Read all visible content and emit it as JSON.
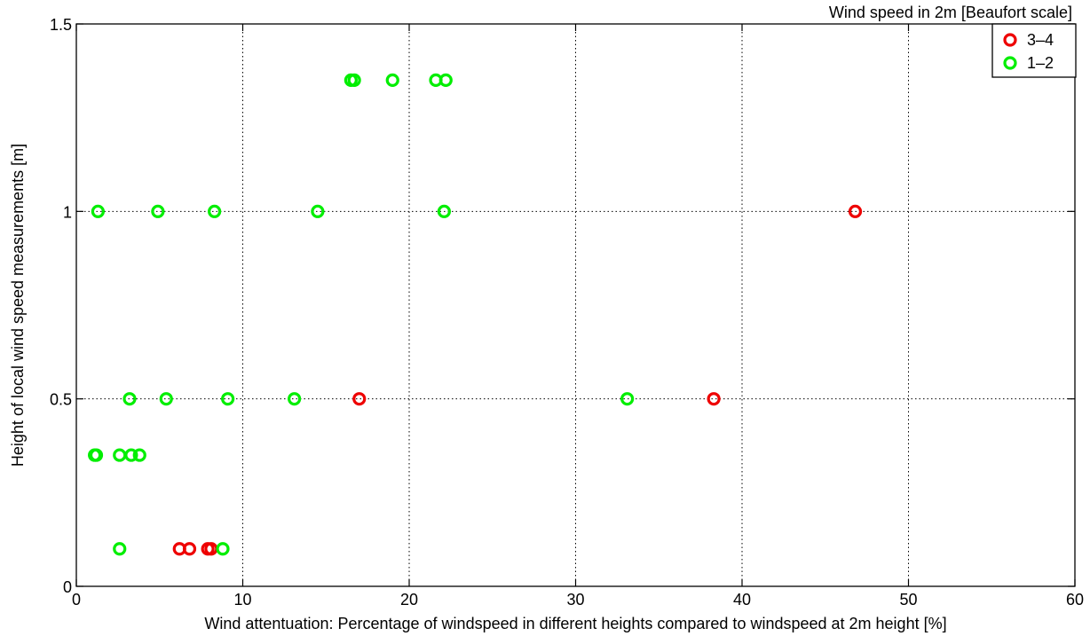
{
  "chart_data": {
    "type": "scatter",
    "title": "",
    "xlabel": "Wind attentuation: Percentage of windspeed in different heights compared to windspeed at 2m height [%]",
    "ylabel": "Height of local wind speed measurements [m]",
    "xlim": [
      0,
      60
    ],
    "ylim": [
      0,
      1.5
    ],
    "x_ticks": [
      0,
      10,
      20,
      30,
      40,
      50,
      60
    ],
    "y_ticks": [
      0,
      0.5,
      1,
      1.5
    ],
    "x_tick_labels": [
      "0",
      "10",
      "20",
      "30",
      "40",
      "50",
      "60"
    ],
    "y_tick_labels": [
      "0",
      "0.5",
      "1",
      "1.5"
    ],
    "grid": true,
    "legend": {
      "title": "Wind speed in 2m [Beaufort scale]",
      "placement": "top-right"
    },
    "series": [
      {
        "name": "3–4",
        "color": "#ee0000",
        "points": [
          {
            "x": 46.8,
            "y": 1.0
          },
          {
            "x": 17.0,
            "y": 0.5
          },
          {
            "x": 38.3,
            "y": 0.5
          },
          {
            "x": 6.2,
            "y": 0.1
          },
          {
            "x": 6.8,
            "y": 0.1
          },
          {
            "x": 7.9,
            "y": 0.1
          },
          {
            "x": 8.1,
            "y": 0.1
          }
        ]
      },
      {
        "name": "1–2",
        "color": "#00ee00",
        "points": [
          {
            "x": 16.5,
            "y": 1.35
          },
          {
            "x": 16.7,
            "y": 1.35
          },
          {
            "x": 19.0,
            "y": 1.35
          },
          {
            "x": 21.6,
            "y": 1.35
          },
          {
            "x": 22.2,
            "y": 1.35
          },
          {
            "x": 1.3,
            "y": 1.0
          },
          {
            "x": 4.9,
            "y": 1.0
          },
          {
            "x": 8.3,
            "y": 1.0
          },
          {
            "x": 14.5,
            "y": 1.0
          },
          {
            "x": 22.1,
            "y": 1.0
          },
          {
            "x": 3.2,
            "y": 0.5
          },
          {
            "x": 5.4,
            "y": 0.5
          },
          {
            "x": 9.1,
            "y": 0.5
          },
          {
            "x": 13.1,
            "y": 0.5
          },
          {
            "x": 33.1,
            "y": 0.5
          },
          {
            "x": 1.1,
            "y": 0.35
          },
          {
            "x": 1.2,
            "y": 0.35
          },
          {
            "x": 2.6,
            "y": 0.35
          },
          {
            "x": 3.3,
            "y": 0.35
          },
          {
            "x": 3.8,
            "y": 0.35
          },
          {
            "x": 2.6,
            "y": 0.1
          },
          {
            "x": 8.8,
            "y": 0.1
          }
        ]
      }
    ]
  }
}
